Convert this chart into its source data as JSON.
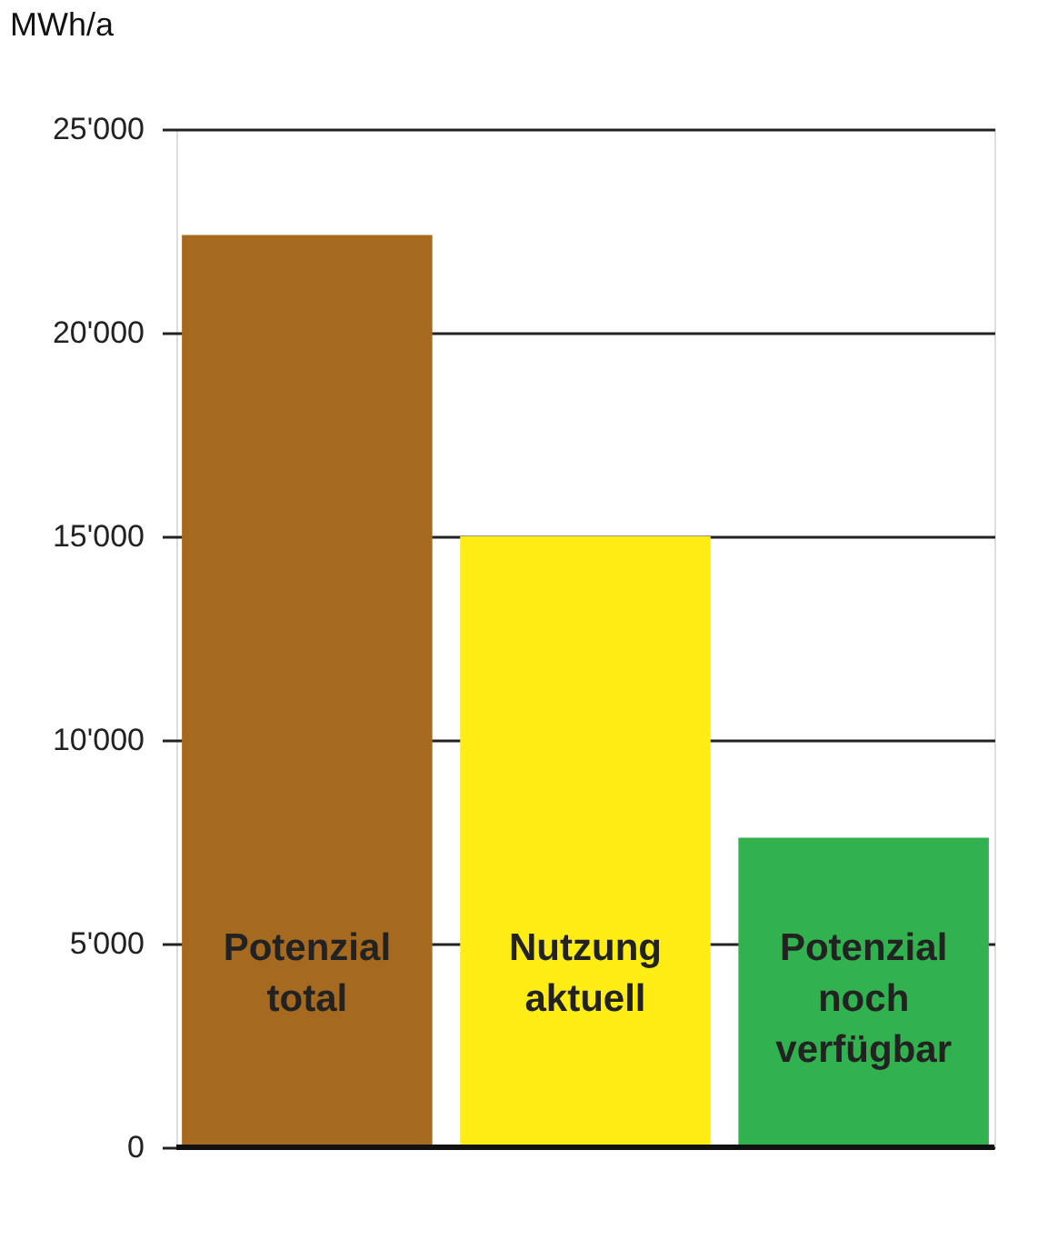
{
  "chart_data": {
    "type": "bar",
    "ylabel": "MWh/a",
    "categories": [
      "Potenzial total",
      "Nutzung aktuell",
      "Potenzial noch verfügbar"
    ],
    "values": [
      22400,
      15000,
      7600
    ],
    "colors": [
      "#a56a1f",
      "#ffed14",
      "#31b24e"
    ],
    "ylim": [
      0,
      25000
    ],
    "yticks": [
      0,
      {
        "value": 5000,
        "label": "5'000"
      },
      {
        "value": 10000,
        "label": "10'000"
      },
      {
        "value": 15000,
        "label": "15'000"
      },
      {
        "value": 20000,
        "label": "20'000"
      },
      {
        "value": 25000,
        "label": "25'000"
      }
    ],
    "grid": "y",
    "tick_labels": "y"
  }
}
